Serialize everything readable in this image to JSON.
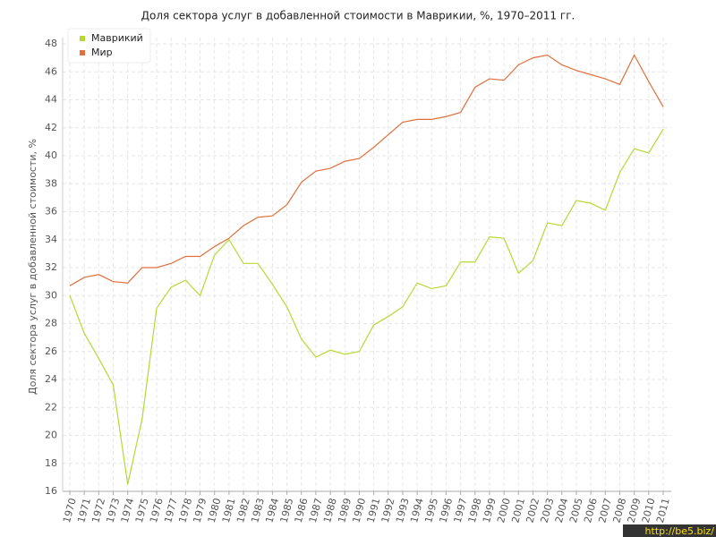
{
  "chart_data": {
    "type": "line",
    "title": "Доля сектора услуг в добавленной стоимости в Маврикии, %, 1970–2011 гг.",
    "y_label": "Доля сектора услуг в добавленной стоимости, %",
    "watermark": "http://be5.biz/",
    "categories": [
      "1970",
      "1971",
      "1972",
      "1973",
      "1974",
      "1975",
      "1976",
      "1977",
      "1978",
      "1979",
      "1980",
      "1981",
      "1982",
      "1983",
      "1984",
      "1985",
      "1986",
      "1987",
      "1988",
      "1989",
      "1990",
      "1991",
      "1992",
      "1993",
      "1994",
      "1995",
      "1996",
      "1997",
      "1998",
      "1999",
      "2000",
      "2001",
      "2002",
      "2003",
      "2004",
      "2005",
      "2006",
      "2007",
      "2008",
      "2009",
      "2010",
      "2011"
    ],
    "series": [
      {
        "name": "Маврикий",
        "color": "#b5d934",
        "values": [
          30.0,
          27.3,
          25.5,
          23.6,
          16.5,
          21.2,
          29.1,
          30.6,
          31.1,
          30.0,
          32.9,
          34.0,
          32.3,
          32.3,
          30.8,
          29.2,
          26.9,
          25.6,
          26.1,
          25.8,
          26.0,
          27.9,
          28.5,
          29.2,
          30.9,
          30.5,
          30.7,
          32.4,
          32.4,
          34.2,
          34.1,
          31.6,
          32.5,
          35.2,
          35.0,
          36.8,
          36.6,
          36.1,
          38.8,
          40.5,
          40.2,
          41.9
        ]
      },
      {
        "name": "Мир",
        "color": "#e0703c",
        "values": [
          30.7,
          31.3,
          31.5,
          31.0,
          30.9,
          32.0,
          32.0,
          32.3,
          32.8,
          32.8,
          33.5,
          34.1,
          35.0,
          35.6,
          35.7,
          36.5,
          38.1,
          38.9,
          39.1,
          39.6,
          39.8,
          40.6,
          41.5,
          42.4,
          42.6,
          42.6,
          42.8,
          43.1,
          44.9,
          45.5,
          45.4,
          46.5,
          47.0,
          47.2,
          46.5,
          46.1,
          45.8,
          45.5,
          45.1,
          47.2,
          45.3,
          43.5
        ]
      }
    ],
    "ylim": [
      16,
      48
    ],
    "yticks": [
      16,
      18,
      20,
      22,
      24,
      26,
      28,
      30,
      32,
      34,
      36,
      38,
      40,
      42,
      44,
      46,
      48
    ],
    "grid": true,
    "legend": "top-left"
  }
}
